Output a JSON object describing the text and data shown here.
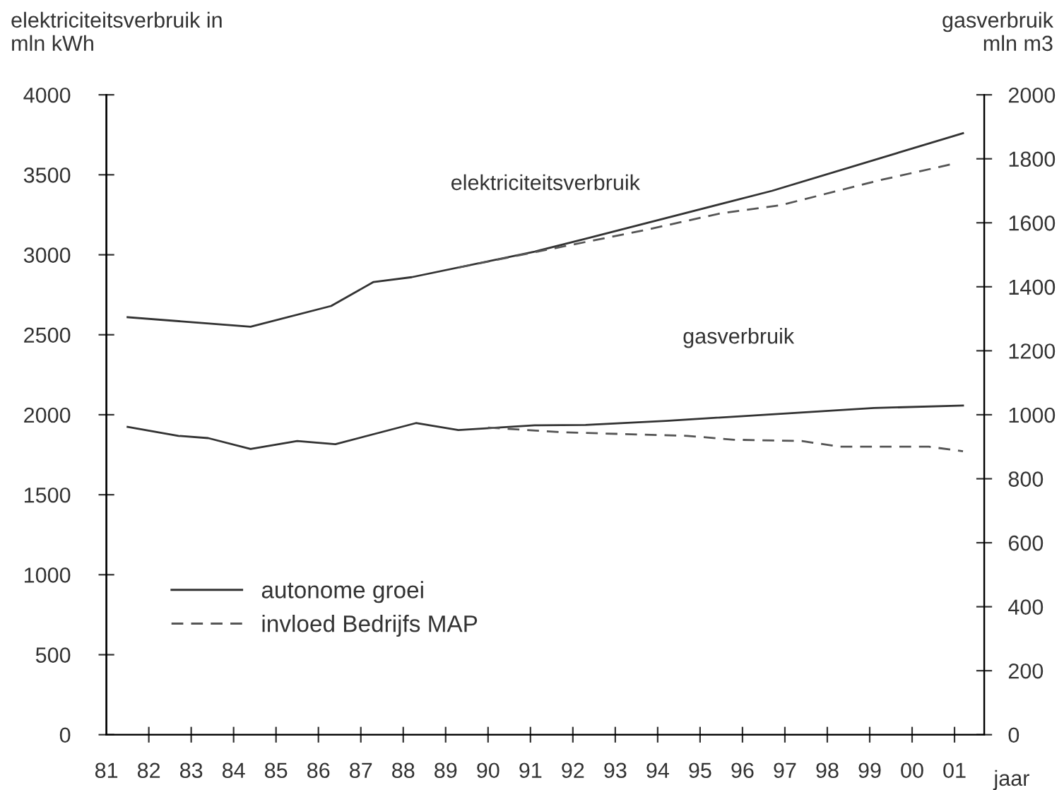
{
  "chart_data": {
    "type": "line",
    "ylabel": "elektriciteitsverbruik in\nmln kWh",
    "y2label": "gasverbruik\nmln m3",
    "xlabel": "jaar",
    "annotations": [
      "elektriciteitsverbruik",
      "gasverbruik"
    ],
    "xlim": [
      1981,
      2001.7
    ],
    "xticks": [
      {
        "value": 1981,
        "label": "81"
      },
      {
        "value": 1982,
        "label": "82"
      },
      {
        "value": 1983,
        "label": "83"
      },
      {
        "value": 1984,
        "label": "84"
      },
      {
        "value": 1985,
        "label": "85"
      },
      {
        "value": 1986,
        "label": "86"
      },
      {
        "value": 1987,
        "label": "87"
      },
      {
        "value": 1988,
        "label": "88"
      },
      {
        "value": 1989,
        "label": "89"
      },
      {
        "value": 1990,
        "label": "90"
      },
      {
        "value": 1991,
        "label": "91"
      },
      {
        "value": 1992,
        "label": "92"
      },
      {
        "value": 1993,
        "label": "93"
      },
      {
        "value": 1994,
        "label": "94"
      },
      {
        "value": 1995,
        "label": "95"
      },
      {
        "value": 1996,
        "label": "96"
      },
      {
        "value": 1997,
        "label": "97"
      },
      {
        "value": 1998,
        "label": "98"
      },
      {
        "value": 1999,
        "label": "99"
      },
      {
        "value": 2000,
        "label": "00"
      },
      {
        "value": 2001,
        "label": "01"
      }
    ],
    "ylim": [
      0,
      4000
    ],
    "yticks": [
      0,
      500,
      1000,
      1500,
      2000,
      2500,
      3000,
      3500,
      4000
    ],
    "y2lim": [
      0,
      2000
    ],
    "y2ticks": [
      0,
      200,
      400,
      600,
      800,
      1000,
      1200,
      1400,
      1600,
      1800,
      2000
    ],
    "grid": false,
    "legend": "bottom left",
    "marker": "none",
    "series": [
      {
        "name": "autonome groei",
        "color": "#333333",
        "line_style": "solid",
        "x": [
          1981.5,
          1984.4,
          1986.3,
          1987.3,
          1988.2,
          1991.1,
          1992.3,
          1996.7,
          2001.2
        ],
        "values": [
          2610,
          2550,
          2680,
          2830,
          2860,
          3020,
          3100,
          3400,
          3760
        ]
      },
      {
        "name": "invloed Bedrijfs MAP",
        "color": "#555555",
        "line_style": "dashed",
        "x": [
          1989.3,
          1992.3,
          1993.8,
          1995.5,
          1996.9,
          1999.3,
          2001.0
        ],
        "values": [
          2920,
          3080,
          3160,
          3260,
          3310,
          3470,
          3570
        ]
      },
      {
        "color": "#333333",
        "line_style": "solid",
        "axis": "y2",
        "x": [
          1981.5,
          1982.7,
          1983.4,
          1984.4,
          1985.5,
          1986.4,
          1988.3,
          1989.3,
          1991.1,
          1992.3,
          1994.2,
          1997.3,
          1999.1,
          2001.2
        ],
        "values": [
          962,
          934,
          927,
          893,
          918,
          908,
          974,
          952,
          967,
          968,
          981,
          1006,
          1021,
          1029
        ]
      },
      {
        "color": "#555555",
        "line_style": "dashed",
        "axis": "y2",
        "x": [
          1990.0,
          1991.8,
          1994.7,
          1995.8,
          1997.4,
          1998.3,
          2000.4,
          2001.2
        ],
        "values": [
          960,
          945,
          934,
          922,
          918,
          900,
          900,
          886
        ]
      }
    ]
  }
}
